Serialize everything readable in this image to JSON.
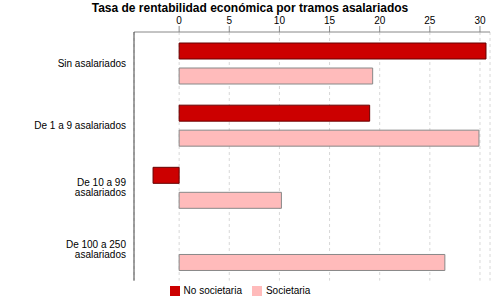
{
  "chart_data": {
    "type": "bar",
    "title": "Tasa de rentabilidad económica por tramos asalariados",
    "orientation": "horizontal",
    "categories": [
      "Sin asalariados",
      "De 1 a 9 asalariados",
      "De 10 a 99 asalariados",
      "De 100 a 250 asalariados"
    ],
    "series": [
      {
        "name": "No societaria",
        "color": "#cc0000",
        "values": [
          30.6,
          19.0,
          -2.6,
          null
        ]
      },
      {
        "name": "Societaria",
        "color": "#ffbbbb",
        "values": [
          19.3,
          29.9,
          10.2,
          26.5
        ]
      }
    ],
    "xlim": [
      -4.5,
      31
    ],
    "xticks": [
      0,
      5,
      10,
      15,
      20,
      25,
      30
    ],
    "grid": true,
    "legend": "bottom"
  }
}
